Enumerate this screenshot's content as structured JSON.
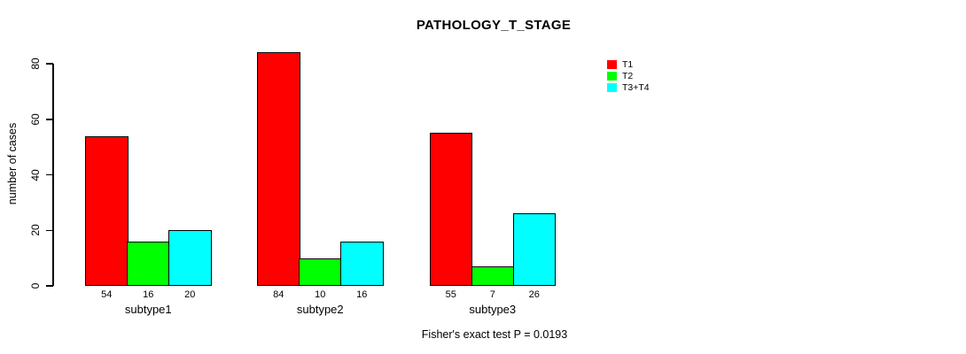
{
  "chart_data": {
    "type": "bar",
    "title": "PATHOLOGY_T_STAGE",
    "xlabel": "",
    "ylabel": "number of cases",
    "categories": [
      "subtype1",
      "subtype2",
      "subtype3"
    ],
    "series": [
      {
        "name": "T1",
        "color": "#ff0000",
        "values": [
          54,
          84,
          55
        ]
      },
      {
        "name": "T2",
        "color": "#00ff00",
        "values": [
          16,
          10,
          7
        ]
      },
      {
        "name": "T3+T4",
        "color": "#00ffff",
        "values": [
          20,
          16,
          26
        ]
      }
    ],
    "bar_value_labels": [
      [
        "54",
        "16",
        "20"
      ],
      [
        "84",
        "10",
        "16"
      ],
      [
        "55",
        "7",
        "26"
      ]
    ],
    "yticks": [
      "0",
      "20",
      "40",
      "60",
      "80"
    ],
    "ylim": [
      0,
      80
    ],
    "grid": false,
    "legend_position": "top-right",
    "annotation": "Fisher's exact test P = 0.0193"
  }
}
